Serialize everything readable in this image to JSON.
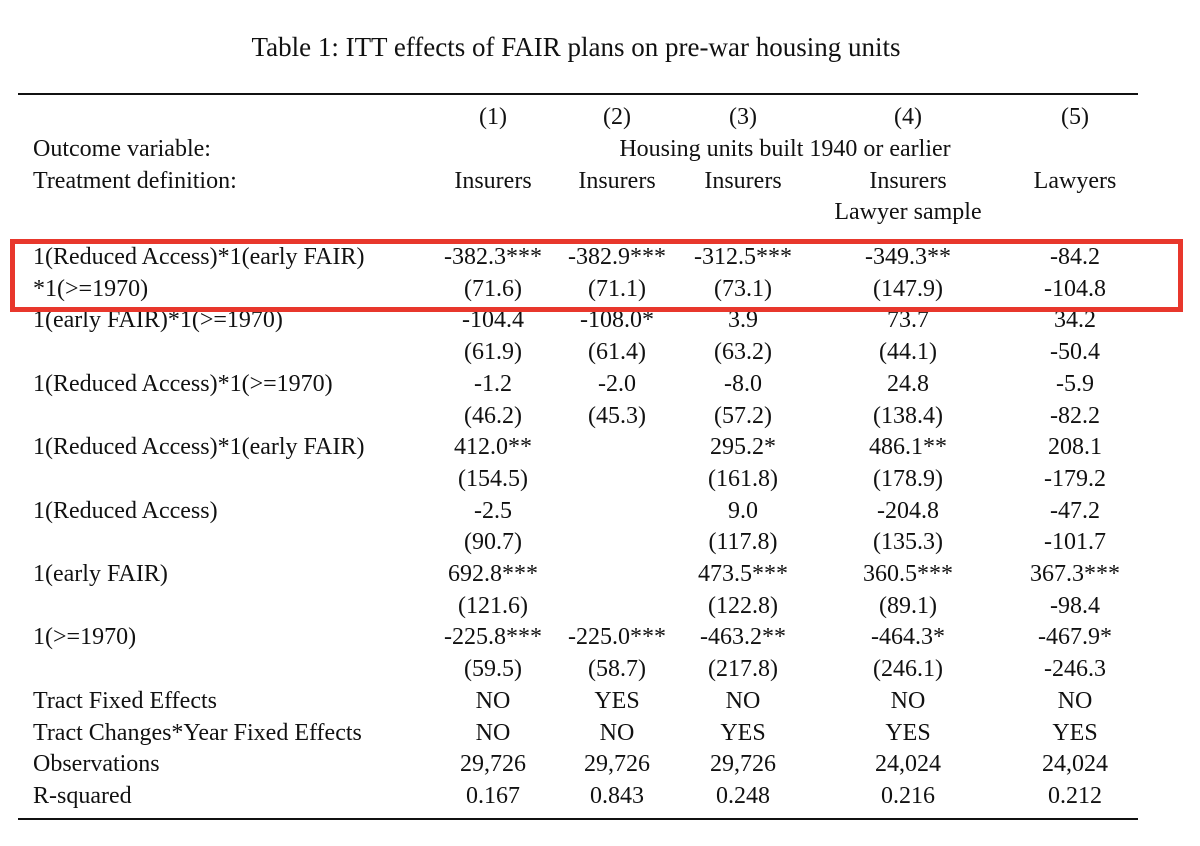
{
  "title": "Table 1: ITT effects of FAIR plans on pre-war housing units",
  "header": {
    "col_numbers": [
      "(1)",
      "(2)",
      "(3)",
      "(4)",
      "(5)"
    ],
    "outcome_label": "Outcome variable:",
    "outcome_value": "Housing units built 1940 or earlier",
    "treatment_label": "Treatment definition:",
    "treatments": [
      "Insurers",
      "Insurers",
      "Insurers",
      "Insurers",
      "Lawyers"
    ],
    "col4_subtitle": "Lawyer sample"
  },
  "rows": [
    {
      "label": "1(Reduced Access)*1(early FAIR)",
      "c": [
        "-382.3***",
        "-382.9***",
        "-312.5***",
        "-349.3**",
        "-84.2"
      ]
    },
    {
      "label": "*1(>=1970)",
      "c": [
        "(71.6)",
        "(71.1)",
        "(73.1)",
        "(147.9)",
        "-104.8"
      ]
    },
    {
      "label": "1(early FAIR)*1(>=1970)",
      "c": [
        "-104.4",
        "-108.0*",
        "3.9",
        "73.7",
        "34.2"
      ]
    },
    {
      "label": "",
      "c": [
        "(61.9)",
        "(61.4)",
        "(63.2)",
        "(44.1)",
        "-50.4"
      ]
    },
    {
      "label": "1(Reduced Access)*1(>=1970)",
      "c": [
        "-1.2",
        "-2.0",
        "-8.0",
        "24.8",
        "-5.9"
      ]
    },
    {
      "label": "",
      "c": [
        "(46.2)",
        "(45.3)",
        "(57.2)",
        "(138.4)",
        "-82.2"
      ]
    },
    {
      "label": "1(Reduced Access)*1(early FAIR)",
      "c": [
        "412.0**",
        "",
        "295.2*",
        "486.1**",
        "208.1"
      ]
    },
    {
      "label": "",
      "c": [
        "(154.5)",
        "",
        "(161.8)",
        "(178.9)",
        "-179.2"
      ]
    },
    {
      "label": "1(Reduced Access)",
      "c": [
        "-2.5",
        "",
        "9.0",
        "-204.8",
        "-47.2"
      ]
    },
    {
      "label": "",
      "c": [
        "(90.7)",
        "",
        "(117.8)",
        "(135.3)",
        "-101.7"
      ]
    },
    {
      "label": "1(early FAIR)",
      "c": [
        "692.8***",
        "",
        "473.5***",
        "360.5***",
        "367.3***"
      ]
    },
    {
      "label": "",
      "c": [
        "(121.6)",
        "",
        "(122.8)",
        "(89.1)",
        "-98.4"
      ]
    },
    {
      "label": "1(>=1970)",
      "c": [
        "-225.8***",
        "-225.0***",
        "-463.2**",
        "-464.3*",
        "-467.9*"
      ]
    },
    {
      "label": "",
      "c": [
        "(59.5)",
        "(58.7)",
        "(217.8)",
        "(246.1)",
        "-246.3"
      ]
    },
    {
      "label": "Tract Fixed Effects",
      "c": [
        "NO",
        "YES",
        "NO",
        "NO",
        "NO"
      ]
    },
    {
      "label": "Tract Changes*Year Fixed Effects",
      "c": [
        "NO",
        "NO",
        "YES",
        "YES",
        "YES"
      ]
    },
    {
      "label": "Observations",
      "c": [
        "29,726",
        "29,726",
        "29,726",
        "24,024",
        "24,024"
      ]
    },
    {
      "label": "R-squared",
      "c": [
        "0.167",
        "0.843",
        "0.248",
        "0.216",
        "0.212"
      ]
    }
  ],
  "highlight_color": "#e8372c"
}
